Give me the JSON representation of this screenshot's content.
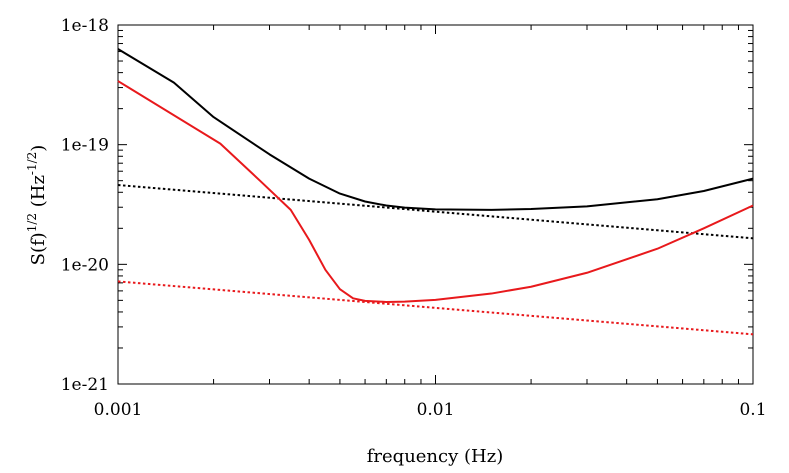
{
  "chart_data": {
    "type": "line",
    "xscale": "log",
    "yscale": "log",
    "xlim": [
      0.001,
      0.1
    ],
    "ylim": [
      1e-21,
      1e-18
    ],
    "xlabel": "frequency (Hz)",
    "ylabel": {
      "base": "S(f)",
      "base_sup": "1/2",
      "unit_open": " (Hz",
      "unit_sup": "-1/2",
      "unit_close": ")"
    },
    "x_ticks": [
      {
        "value": 0.001,
        "label": "0.001"
      },
      {
        "value": 0.01,
        "label": "0.01"
      },
      {
        "value": 0.1,
        "label": "0.1"
      }
    ],
    "y_ticks": [
      {
        "value": 1e-21,
        "label": "1e-21"
      },
      {
        "value": 1e-20,
        "label": "1e-20"
      },
      {
        "value": 1e-19,
        "label": "1e-19"
      },
      {
        "value": 1e-18,
        "label": "1e-18"
      }
    ],
    "grid": false,
    "series": [
      {
        "color": "#000000",
        "style": "solid",
        "points": [
          [
            0.001,
            6.3e-19
          ],
          [
            0.0015,
            3.3e-19
          ],
          [
            0.002,
            1.7e-19
          ],
          [
            0.003,
            8.3e-20
          ],
          [
            0.004,
            5.2e-20
          ],
          [
            0.005,
            3.9e-20
          ],
          [
            0.006,
            3.35e-20
          ],
          [
            0.007,
            3.1e-20
          ],
          [
            0.008,
            2.98e-20
          ],
          [
            0.01,
            2.88e-20
          ],
          [
            0.015,
            2.85e-20
          ],
          [
            0.02,
            2.9e-20
          ],
          [
            0.03,
            3.05e-20
          ],
          [
            0.05,
            3.5e-20
          ],
          [
            0.07,
            4.1e-20
          ],
          [
            0.1,
            5.2e-20
          ]
        ]
      },
      {
        "color": "#000000",
        "style": "dotted",
        "points": [
          [
            0.001,
            4.6e-20
          ],
          [
            0.1,
            1.65e-20
          ]
        ]
      },
      {
        "color": "#e8191c",
        "style": "solid",
        "points": [
          [
            0.001,
            3.4e-19
          ],
          [
            0.0021,
            1.02e-19
          ],
          [
            0.0028,
            5e-20
          ],
          [
            0.0035,
            2.85e-20
          ],
          [
            0.004,
            1.6e-20
          ],
          [
            0.0045,
            9e-21
          ],
          [
            0.005,
            6.2e-21
          ],
          [
            0.0055,
            5.2e-21
          ],
          [
            0.006,
            4.95e-21
          ],
          [
            0.007,
            4.85e-21
          ],
          [
            0.008,
            4.88e-21
          ],
          [
            0.01,
            5.05e-21
          ],
          [
            0.015,
            5.7e-21
          ],
          [
            0.02,
            6.5e-21
          ],
          [
            0.03,
            8.5e-21
          ],
          [
            0.05,
            1.35e-20
          ],
          [
            0.07,
            2e-20
          ],
          [
            0.1,
            3.1e-20
          ]
        ]
      },
      {
        "color": "#e8191c",
        "style": "dotted",
        "points": [
          [
            0.001,
            7.2e-21
          ],
          [
            0.1,
            2.6e-21
          ]
        ]
      }
    ]
  }
}
